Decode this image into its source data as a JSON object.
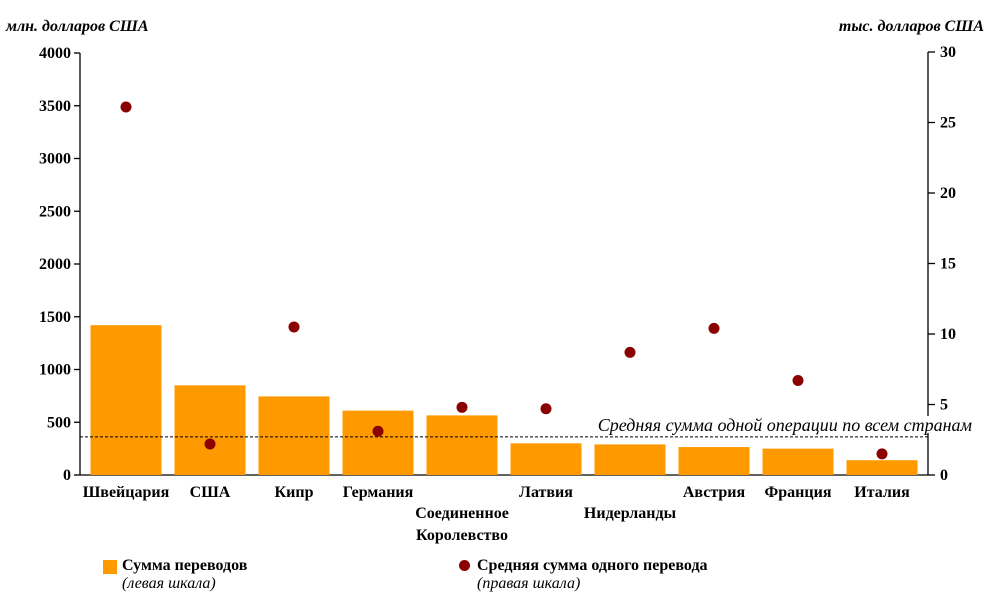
{
  "chart_data": {
    "type": "bar",
    "left_axis_title": "млн. долларов США",
    "right_axis_title": "тыс. долларов США",
    "categories": [
      [
        "Швейцария"
      ],
      [
        "США"
      ],
      [
        "Кипр"
      ],
      [
        "Германия"
      ],
      [
        "Соединенное",
        "Королевство"
      ],
      [
        "Латвия"
      ],
      [
        "Нидерланды"
      ],
      [
        "Австрия"
      ],
      [
        "Франция"
      ],
      [
        "Италия"
      ]
    ],
    "series": [
      {
        "name": "Сумма переводов",
        "axis": "left",
        "kind": "bar",
        "color": "#ff9900",
        "values": [
          1420,
          850,
          745,
          610,
          565,
          300,
          290,
          265,
          250,
          140
        ]
      },
      {
        "name": "Средняя сумма одного перевода",
        "axis": "right",
        "kind": "scatter",
        "color": "#8b0000",
        "values": [
          26.1,
          2.2,
          10.5,
          3.1,
          4.8,
          4.7,
          8.7,
          10.4,
          6.7,
          1.5
        ]
      }
    ],
    "left_axis": {
      "min": 0,
      "max": 4000,
      "step": 500,
      "ticks": [
        "0",
        "500",
        "1000",
        "1500",
        "2000",
        "2500",
        "3000",
        "3500",
        "4000"
      ]
    },
    "right_axis": {
      "min": 0,
      "max": 30,
      "step": 5,
      "ticks": [
        "0",
        "5",
        "10",
        "15",
        "20",
        "25",
        "30"
      ]
    },
    "reference_line": {
      "value": 2.7,
      "axis": "right",
      "label": "Средняя сумма одной операции по всем странам"
    },
    "grid": false,
    "legend_position": "bottom-left",
    "legend": [
      {
        "name": "Сумма переводов",
        "sub": "(левая шкала)",
        "marker": "square",
        "color": "#ff9900"
      },
      {
        "name": "Средняя сумма одного перевода",
        "sub": "(правая шкала)",
        "marker": "circle",
        "color": "#8b0000"
      }
    ]
  }
}
